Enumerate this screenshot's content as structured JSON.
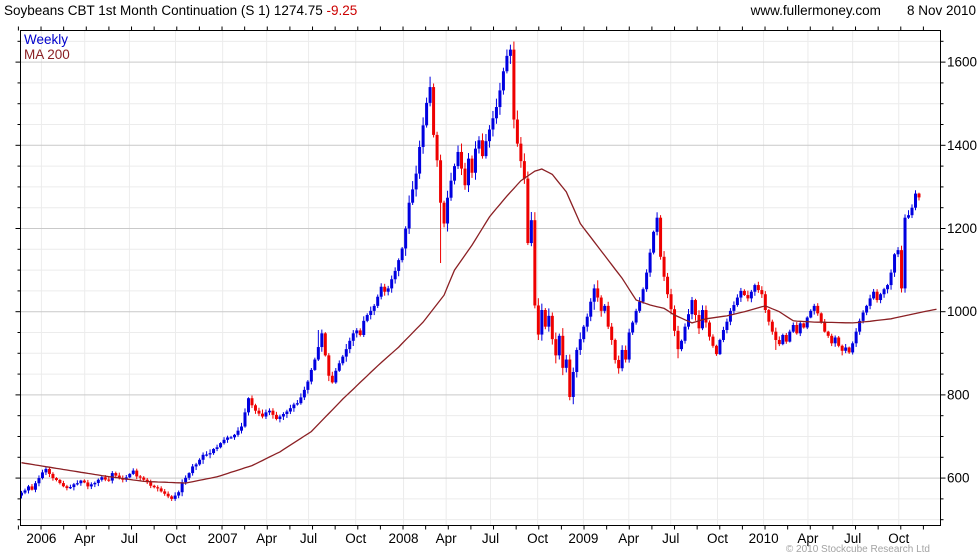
{
  "header": {
    "instrument": "Soybeans CBT 1st Month Continuation (S 1)",
    "last_price": "1274.75",
    "change": "-9.25",
    "site": "www.fullermoney.com",
    "date": "8 Nov 2010"
  },
  "legend": {
    "series_label": "Weekly",
    "ma_label": "MA 200"
  },
  "footer": {
    "copyright": "© 2010 Stockcube Research Ltd"
  },
  "chart_data": {
    "type": "candlestick",
    "interval": "weekly",
    "title": "Soybeans CBT 1st Month Continuation (S 1)",
    "last_close": 1274.75,
    "change": -9.25,
    "overlay": "200-period moving average",
    "y_axis": {
      "side": "right",
      "labels": [
        600,
        800,
        1000,
        1200,
        1400,
        1600
      ],
      "major_step": 200,
      "minor_step": 50,
      "price_at_plot_top": 1676,
      "price_at_plot_bottom": 486
    },
    "x_ticks": [
      {
        "label": "2006",
        "week": 5.7
      },
      {
        "label": "Apr",
        "week": 18.1
      },
      {
        "label": "Jul",
        "week": 30.9
      },
      {
        "label": "Oct",
        "week": 44.1
      },
      {
        "label": "2007",
        "week": 57.6
      },
      {
        "label": "Apr",
        "week": 70.2
      },
      {
        "label": "Jul",
        "week": 82.2
      },
      {
        "label": "Oct",
        "week": 95.7
      },
      {
        "label": "2008",
        "week": 109.4
      },
      {
        "label": "Apr",
        "week": 121.6
      },
      {
        "label": "Jul",
        "week": 134.3
      },
      {
        "label": "Oct",
        "week": 147.8
      },
      {
        "label": "2009",
        "week": 160.9
      },
      {
        "label": "Apr",
        "week": 173.9
      },
      {
        "label": "Jul",
        "week": 185.9
      },
      {
        "label": "Oct",
        "week": 199.3
      },
      {
        "label": "2010",
        "week": 212.5
      },
      {
        "label": "Apr",
        "week": 225.2
      },
      {
        "label": "Jul",
        "week": 238.0
      },
      {
        "label": "Oct",
        "week": 251.2
      }
    ],
    "weeks_total": 258,
    "first_open": 558,
    "close_anchors": [
      [
        0,
        565
      ],
      [
        2,
        580
      ],
      [
        3,
        572
      ],
      [
        5,
        600
      ],
      [
        7,
        622
      ],
      [
        8,
        610
      ],
      [
        9,
        600
      ],
      [
        11,
        588
      ],
      [
        13,
        576
      ],
      [
        15,
        585
      ],
      [
        17,
        594
      ],
      [
        19,
        580
      ],
      [
        20,
        585
      ],
      [
        22,
        596
      ],
      [
        23,
        602
      ],
      [
        25,
        594
      ],
      [
        26,
        612
      ],
      [
        28,
        600
      ],
      [
        29,
        596
      ],
      [
        31,
        610
      ],
      [
        32,
        618
      ],
      [
        33,
        604
      ],
      [
        35,
        596
      ],
      [
        36,
        590
      ],
      [
        38,
        578
      ],
      [
        40,
        568
      ],
      [
        42,
        556
      ],
      [
        43,
        550
      ],
      [
        44,
        558
      ],
      [
        45,
        566
      ],
      [
        46,
        590
      ],
      [
        48,
        612
      ],
      [
        49,
        628
      ],
      [
        51,
        644
      ],
      [
        52,
        656
      ],
      [
        54,
        660
      ],
      [
        55,
        670
      ],
      [
        57,
        684
      ],
      [
        58,
        692
      ],
      [
        60,
        698
      ],
      [
        61,
        704
      ],
      [
        62,
        714
      ],
      [
        63,
        724
      ],
      [
        64,
        758
      ],
      [
        65,
        792
      ],
      [
        66,
        775
      ],
      [
        67,
        762
      ],
      [
        68,
        755
      ],
      [
        69,
        748
      ],
      [
        70,
        758
      ],
      [
        71,
        762
      ],
      [
        72,
        752
      ],
      [
        73,
        742
      ],
      [
        74,
        748
      ],
      [
        75,
        754
      ],
      [
        76,
        760
      ],
      [
        77,
        768
      ],
      [
        79,
        780
      ],
      [
        80,
        794
      ],
      [
        81,
        812
      ],
      [
        82,
        832
      ],
      [
        83,
        860
      ],
      [
        84,
        885
      ],
      [
        85,
        915
      ],
      [
        86,
        948
      ],
      [
        87,
        895
      ],
      [
        88,
        846
      ],
      [
        89,
        830
      ],
      [
        90,
        858
      ],
      [
        91,
        876
      ],
      [
        92,
        892
      ],
      [
        93,
        910
      ],
      [
        94,
        930
      ],
      [
        95,
        948
      ],
      [
        96,
        955
      ],
      [
        97,
        944
      ],
      [
        98,
        978
      ],
      [
        99,
        992
      ],
      [
        100,
        1002
      ],
      [
        101,
        1014
      ],
      [
        102,
        1036
      ],
      [
        103,
        1060
      ],
      [
        104,
        1048
      ],
      [
        105,
        1056
      ],
      [
        106,
        1078
      ],
      [
        107,
        1098
      ],
      [
        108,
        1124
      ],
      [
        109,
        1152
      ],
      [
        110,
        1200
      ],
      [
        111,
        1262
      ],
      [
        112,
        1294
      ],
      [
        113,
        1332
      ],
      [
        114,
        1396
      ],
      [
        115,
        1448
      ],
      [
        116,
        1502
      ],
      [
        117,
        1540
      ],
      [
        118,
        1425
      ],
      [
        119,
        1364
      ],
      [
        120,
        1262
      ],
      [
        121,
        1212
      ],
      [
        122,
        1274
      ],
      [
        123,
        1315
      ],
      [
        124,
        1350
      ],
      [
        125,
        1384
      ],
      [
        126,
        1344
      ],
      [
        127,
        1304
      ],
      [
        128,
        1368
      ],
      [
        129,
        1334
      ],
      [
        130,
        1392
      ],
      [
        131,
        1412
      ],
      [
        132,
        1374
      ],
      [
        133,
        1410
      ],
      [
        134,
        1438
      ],
      [
        135,
        1465
      ],
      [
        136,
        1492
      ],
      [
        137,
        1532
      ],
      [
        138,
        1578
      ],
      [
        139,
        1615
      ],
      [
        140,
        1630
      ],
      [
        141,
        1462
      ],
      [
        142,
        1404
      ],
      [
        143,
        1362
      ],
      [
        144,
        1320
      ],
      [
        145,
        1165
      ],
      [
        146,
        1220
      ],
      [
        147,
        1015
      ],
      [
        148,
        945
      ],
      [
        149,
        1004
      ],
      [
        150,
        964
      ],
      [
        151,
        990
      ],
      [
        152,
        934
      ],
      [
        153,
        895
      ],
      [
        154,
        942
      ],
      [
        155,
        865
      ],
      [
        156,
        885
      ],
      [
        157,
        795
      ],
      [
        158,
        855
      ],
      [
        159,
        908
      ],
      [
        160,
        934
      ],
      [
        161,
        964
      ],
      [
        162,
        988
      ],
      [
        163,
        1024
      ],
      [
        164,
        1056
      ],
      [
        165,
        1034
      ],
      [
        166,
        1002
      ],
      [
        167,
        1014
      ],
      [
        168,
        964
      ],
      [
        169,
        932
      ],
      [
        170,
        884
      ],
      [
        171,
        864
      ],
      [
        172,
        908
      ],
      [
        173,
        885
      ],
      [
        174,
        950
      ],
      [
        175,
        974
      ],
      [
        176,
        1002
      ],
      [
        177,
        1024
      ],
      [
        178,
        1054
      ],
      [
        179,
        1094
      ],
      [
        180,
        1142
      ],
      [
        181,
        1192
      ],
      [
        182,
        1226
      ],
      [
        183,
        1132
      ],
      [
        184,
        1084
      ],
      [
        185,
        1042
      ],
      [
        186,
        1006
      ],
      [
        187,
        954
      ],
      [
        188,
        910
      ],
      [
        189,
        930
      ],
      [
        190,
        964
      ],
      [
        191,
        994
      ],
      [
        192,
        1028
      ],
      [
        193,
        992
      ],
      [
        194,
        960
      ],
      [
        195,
        1004
      ],
      [
        196,
        974
      ],
      [
        197,
        940
      ],
      [
        198,
        918
      ],
      [
        199,
        898
      ],
      [
        200,
        932
      ],
      [
        201,
        956
      ],
      [
        202,
        976
      ],
      [
        203,
        1002
      ],
      [
        204,
        1016
      ],
      [
        205,
        1034
      ],
      [
        206,
        1050
      ],
      [
        207,
        1040
      ],
      [
        208,
        1032
      ],
      [
        209,
        1048
      ],
      [
        210,
        1064
      ],
      [
        211,
        1052
      ],
      [
        212,
        1042
      ],
      [
        213,
        1004
      ],
      [
        214,
        976
      ],
      [
        215,
        952
      ],
      [
        216,
        932
      ],
      [
        217,
        922
      ],
      [
        218,
        944
      ],
      [
        219,
        928
      ],
      [
        220,
        952
      ],
      [
        221,
        968
      ],
      [
        222,
        948
      ],
      [
        223,
        972
      ],
      [
        224,
        962
      ],
      [
        225,
        986
      ],
      [
        226,
        1002
      ],
      [
        227,
        1014
      ],
      [
        228,
        996
      ],
      [
        229,
        976
      ],
      [
        230,
        952
      ],
      [
        231,
        942
      ],
      [
        232,
        924
      ],
      [
        233,
        938
      ],
      [
        234,
        918
      ],
      [
        235,
        906
      ],
      [
        236,
        914
      ],
      [
        237,
        902
      ],
      [
        238,
        924
      ],
      [
        239,
        952
      ],
      [
        240,
        978
      ],
      [
        241,
        998
      ],
      [
        242,
        1014
      ],
      [
        243,
        1032
      ],
      [
        244,
        1048
      ],
      [
        245,
        1028
      ],
      [
        246,
        1042
      ],
      [
        247,
        1054
      ],
      [
        248,
        1064
      ],
      [
        249,
        1094
      ],
      [
        250,
        1138
      ],
      [
        251,
        1148
      ],
      [
        252,
        1056
      ],
      [
        253,
        1226
      ],
      [
        254,
        1232
      ],
      [
        255,
        1250
      ],
      [
        256,
        1284
      ],
      [
        257,
        1274.75
      ]
    ],
    "volatility_bands": [
      [
        0,
        45,
        8
      ],
      [
        46,
        84,
        10
      ],
      [
        85,
        109,
        13
      ],
      [
        110,
        144,
        22
      ],
      [
        145,
        166,
        20
      ],
      [
        167,
        198,
        14
      ],
      [
        199,
        216,
        11
      ],
      [
        217,
        247,
        9
      ],
      [
        248,
        257,
        12
      ]
    ],
    "wick_overrides": [
      [
        43,
        "low",
        545
      ],
      [
        85,
        "high",
        956
      ],
      [
        117,
        "high",
        1565
      ],
      [
        120,
        "low",
        1117
      ],
      [
        140,
        "high",
        1642
      ],
      [
        147,
        "low",
        1008
      ],
      [
        157,
        "low",
        787
      ],
      [
        182,
        "high",
        1239
      ],
      [
        188,
        "low",
        888
      ],
      [
        216,
        "low",
        908
      ],
      [
        235,
        "low",
        895
      ],
      [
        256,
        "high",
        1292
      ],
      [
        257,
        "high",
        1286
      ]
    ],
    "ma_points": [
      [
        0,
        637
      ],
      [
        11,
        622
      ],
      [
        23,
        606
      ],
      [
        35,
        592
      ],
      [
        47,
        588
      ],
      [
        56,
        603
      ],
      [
        66,
        630
      ],
      [
        74,
        663
      ],
      [
        83,
        712
      ],
      [
        92,
        790
      ],
      [
        102,
        870
      ],
      [
        108,
        915
      ],
      [
        115,
        975
      ],
      [
        121,
        1040
      ],
      [
        124,
        1100
      ],
      [
        129,
        1160
      ],
      [
        134,
        1228
      ],
      [
        139,
        1278
      ],
      [
        143,
        1315
      ],
      [
        147,
        1338
      ],
      [
        149,
        1343
      ],
      [
        152,
        1330
      ],
      [
        156,
        1288
      ],
      [
        160,
        1212
      ],
      [
        164,
        1168
      ],
      [
        168,
        1124
      ],
      [
        172,
        1080
      ],
      [
        176,
        1028
      ],
      [
        180,
        1016
      ],
      [
        184,
        1008
      ],
      [
        187,
        992
      ],
      [
        192,
        973
      ],
      [
        196,
        983
      ],
      [
        202,
        990
      ],
      [
        207,
        1000
      ],
      [
        213,
        1014
      ],
      [
        217,
        1000
      ],
      [
        221,
        978
      ],
      [
        227,
        975
      ],
      [
        233,
        974
      ],
      [
        238,
        973
      ],
      [
        243,
        977
      ],
      [
        249,
        983
      ],
      [
        255,
        994
      ],
      [
        259,
        1001
      ],
      [
        262,
        1006
      ]
    ],
    "colors": {
      "up": "#0000e0",
      "down": "#ee0000",
      "ma": "#8b2024",
      "grid_minor": "#ececec",
      "grid_major": "#c9c9c9",
      "axis": "#000000",
      "title_change": "#cc0000",
      "legend_weekly": "#0000cc",
      "copyright": "#a3a3a3"
    }
  }
}
